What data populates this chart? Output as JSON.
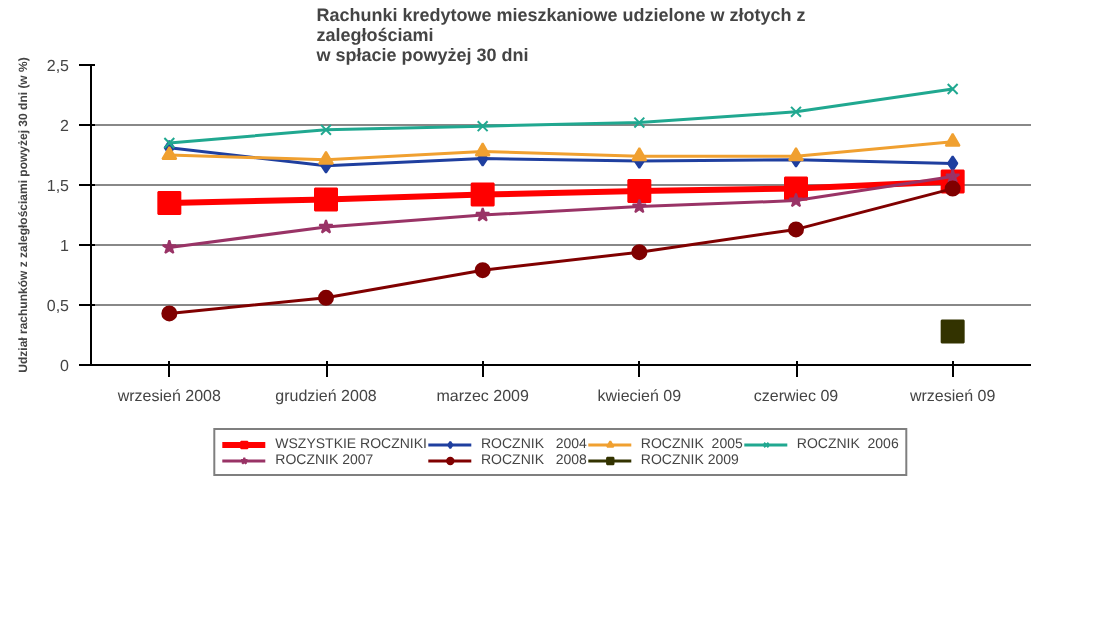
{
  "chart_data": {
    "type": "line",
    "title": "Rachunki kredytowe mieszkaniowe udzielone w złotych z\nzaległościami\nw spłacie powyżej 30 dni",
    "ylabel": "Udział rachunków z zaległościami powyżej 30 dni (w %)",
    "categories": [
      "wrzesień 2008",
      "grudzień 2008",
      "marzec 2009",
      "kwiecień 09",
      "czerwiec 09",
      "wrzesień 09"
    ],
    "ylim": [
      0,
      2.5
    ],
    "yticks": [
      0,
      {
        "value": 0.5,
        "label": "0,5"
      },
      1,
      {
        "value": 1.5,
        "label": "1,5"
      },
      2,
      {
        "value": 2.5,
        "label": "2,5"
      }
    ],
    "grid": "y",
    "legend": "bottom",
    "series": [
      {
        "name": "WSZYSTKIE ROCZNIKI",
        "color": "#ff0000",
        "marker": "square",
        "values": [
          1.35,
          1.38,
          1.42,
          1.45,
          1.47,
          1.53
        ]
      },
      {
        "name": "ROCZNIK   2004",
        "color": "#1f3f9f",
        "marker": "diamond",
        "values": [
          1.81,
          1.66,
          1.72,
          1.7,
          1.71,
          1.68
        ]
      },
      {
        "name": "ROCZNIK  2005",
        "color": "#f0a030",
        "marker": "triangle",
        "values": [
          1.75,
          1.71,
          1.78,
          1.74,
          1.74,
          1.86
        ]
      },
      {
        "name": "ROCZNIK  2006",
        "color": "#20a890",
        "marker": "cross",
        "values": [
          1.85,
          1.96,
          1.99,
          2.02,
          2.11,
          2.3
        ]
      },
      {
        "name": "ROCZNIK 2007",
        "color": "#993366",
        "marker": "star",
        "values": [
          0.98,
          1.15,
          1.25,
          1.32,
          1.37,
          1.57
        ]
      },
      {
        "name": "ROCZNIK   2008",
        "color": "#800000",
        "marker": "circle",
        "values": [
          0.43,
          0.56,
          0.79,
          0.94,
          1.13,
          1.47
        ]
      },
      {
        "name": "ROCZNIK 2009",
        "color": "#333300",
        "marker": "square",
        "values": [
          null,
          null,
          null,
          null,
          null,
          0.28
        ]
      }
    ]
  }
}
